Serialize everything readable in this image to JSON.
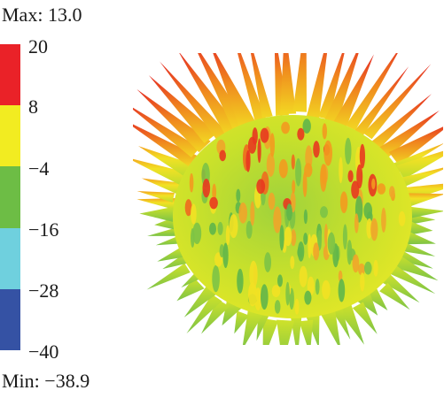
{
  "legend": {
    "max_text": "Max: 13.0",
    "min_text": "Min: −38.9",
    "ticks": [
      "20",
      "8",
      "−4",
      "−16",
      "−28",
      "−40"
    ],
    "bands": [
      {
        "from": "8",
        "to": "20",
        "color": "#ea2228"
      },
      {
        "from": "−4",
        "to": "8",
        "color": "#f2ec21"
      },
      {
        "from": "−16",
        "to": "−4",
        "color": "#6dbd45"
      },
      {
        "from": "−28",
        "to": "−16",
        "color": "#6fd0de"
      },
      {
        "from": "−40",
        "to": "−28",
        "color": "#3552a4"
      }
    ]
  },
  "plot": {
    "icon": "radiation-pattern-3d-icon"
  }
}
